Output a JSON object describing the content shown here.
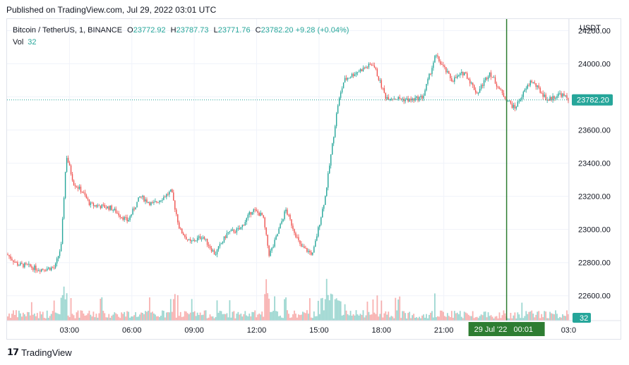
{
  "header": {
    "published": "Published on TradingView.com, Jul 29, 2022 03:01 UTC"
  },
  "legend": {
    "symbol": "Bitcoin / TetherUS, 1, BINANCE",
    "open_label": "O",
    "open": "23772.92",
    "high_label": "H",
    "high": "23787.73",
    "low_label": "L",
    "low": "23771.76",
    "close_label": "C",
    "close": "23782.20",
    "change": "+9.28 (+0.04%)",
    "vol_label": "Vol",
    "vol": "32"
  },
  "currency": "USDT",
  "footer": {
    "brand": "TradingView"
  },
  "colors": {
    "up": "#26a69a",
    "down": "#ef5350",
    "crosshair": "#2e7d32",
    "grid": "#f0f3fa"
  },
  "chart_data": {
    "type": "candlestick",
    "title": "Bitcoin / TetherUS, 1, BINANCE",
    "ylabel": "USDT",
    "y_ticks": [
      22600,
      22800,
      23000,
      23200,
      23400,
      23600,
      23800,
      24000,
      24200
    ],
    "y_tick_labels": [
      "22600.00",
      "22800.00",
      "23000.00",
      "23200.00",
      "23400.00",
      "23600.00",
      "23800.00",
      "24000.00",
      "24200.00"
    ],
    "ylim": [
      22450,
      24270
    ],
    "x_tick_labels": [
      "03:00",
      "06:00",
      "09:00",
      "12:00",
      "15:00",
      "18:00",
      "21:00",
      "03:0"
    ],
    "x_tick_hours": [
      3,
      6,
      9,
      12,
      15,
      18,
      21,
      27
    ],
    "xlim_hours": [
      0,
      27.02
    ],
    "last_price": "23782.20",
    "last_volume": "32",
    "crosshair_label": "29 Jul '22   00:01",
    "crosshair_hour": 24.02,
    "price_path": [
      {
        "t": 0.0,
        "p": 22850
      },
      {
        "t": 0.5,
        "p": 22790
      },
      {
        "t": 1.0,
        "p": 22780
      },
      {
        "t": 1.5,
        "p": 22760
      },
      {
        "t": 2.3,
        "p": 22770
      },
      {
        "t": 2.6,
        "p": 22900
      },
      {
        "t": 2.85,
        "p": 23450
      },
      {
        "t": 3.2,
        "p": 23280
      },
      {
        "t": 3.6,
        "p": 23230
      },
      {
        "t": 4.0,
        "p": 23150
      },
      {
        "t": 5.0,
        "p": 23130
      },
      {
        "t": 5.8,
        "p": 23050
      },
      {
        "t": 6.4,
        "p": 23200
      },
      {
        "t": 7.0,
        "p": 23150
      },
      {
        "t": 7.9,
        "p": 23230
      },
      {
        "t": 8.3,
        "p": 23000
      },
      {
        "t": 8.8,
        "p": 22920
      },
      {
        "t": 9.4,
        "p": 22960
      },
      {
        "t": 10.0,
        "p": 22850
      },
      {
        "t": 10.6,
        "p": 22980
      },
      {
        "t": 11.2,
        "p": 23000
      },
      {
        "t": 11.8,
        "p": 23120
      },
      {
        "t": 12.3,
        "p": 23080
      },
      {
        "t": 12.6,
        "p": 22850
      },
      {
        "t": 12.8,
        "p": 22900
      },
      {
        "t": 13.4,
        "p": 23120
      },
      {
        "t": 14.1,
        "p": 22900
      },
      {
        "t": 14.7,
        "p": 22850
      },
      {
        "t": 15.3,
        "p": 23200
      },
      {
        "t": 15.9,
        "p": 23750
      },
      {
        "t": 16.2,
        "p": 23900
      },
      {
        "t": 16.8,
        "p": 23950
      },
      {
        "t": 17.6,
        "p": 24000
      },
      {
        "t": 18.2,
        "p": 23800
      },
      {
        "t": 19.4,
        "p": 23780
      },
      {
        "t": 20.0,
        "p": 23800
      },
      {
        "t": 20.6,
        "p": 24050
      },
      {
        "t": 21.4,
        "p": 23900
      },
      {
        "t": 22.0,
        "p": 23950
      },
      {
        "t": 22.6,
        "p": 23820
      },
      {
        "t": 23.2,
        "p": 23950
      },
      {
        "t": 23.8,
        "p": 23820
      },
      {
        "t": 24.4,
        "p": 23730
      },
      {
        "t": 25.2,
        "p": 23900
      },
      {
        "t": 26.0,
        "p": 23780
      },
      {
        "t": 26.6,
        "p": 23820
      },
      {
        "t": 27.02,
        "p": 23782
      }
    ]
  }
}
